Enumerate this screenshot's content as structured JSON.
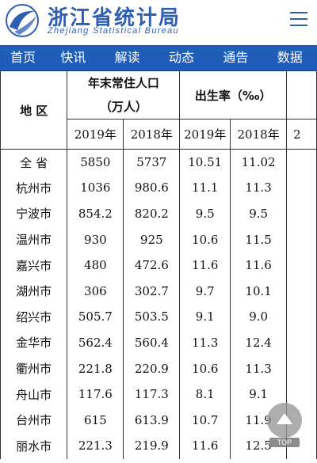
{
  "header": {
    "title": "浙江省统计局",
    "subtitle": "Zhejiang Statistical Bureau",
    "logo_icon": "zhejiang-stats-logo-icon",
    "menu_icon": "hamburger-menu-icon",
    "brand_color": "#2f5fb4"
  },
  "nav": {
    "background": "#1f5db8",
    "items": [
      {
        "label": "首页"
      },
      {
        "label": "快讯"
      },
      {
        "label": "解读"
      },
      {
        "label": "动态"
      },
      {
        "label": "通告"
      },
      {
        "label": "数据"
      }
    ]
  },
  "table": {
    "region_header": "地 区",
    "population_header_line1": "年末常住人口",
    "population_header_line2": "（万人）",
    "birth_rate_header": "出生率（‰）",
    "year_2019": "2019年",
    "year_2018": "2018年",
    "year_clipped": "2",
    "rows": [
      {
        "region": "全  省",
        "pop_2019": "5850",
        "pop_2018": "5737",
        "birth_2019": "10.51",
        "birth_2018": "11.02"
      },
      {
        "region": "杭州市",
        "pop_2019": "1036",
        "pop_2018": "980.6",
        "birth_2019": "11.1",
        "birth_2018": "11.3"
      },
      {
        "region": "宁波市",
        "pop_2019": "854.2",
        "pop_2018": "820.2",
        "birth_2019": "9.5",
        "birth_2018": "9.5"
      },
      {
        "region": "温州市",
        "pop_2019": "930",
        "pop_2018": "925",
        "birth_2019": "10.6",
        "birth_2018": "11.5"
      },
      {
        "region": "嘉兴市",
        "pop_2019": "480",
        "pop_2018": "472.6",
        "birth_2019": "11.6",
        "birth_2018": "11.6"
      },
      {
        "region": "湖州市",
        "pop_2019": "306",
        "pop_2018": "302.7",
        "birth_2019": "9.7",
        "birth_2018": "10.1"
      },
      {
        "region": "绍兴市",
        "pop_2019": "505.7",
        "pop_2018": "503.5",
        "birth_2019": "9.1",
        "birth_2018": "9.0"
      },
      {
        "region": "金华市",
        "pop_2019": "562.4",
        "pop_2018": "560.4",
        "birth_2019": "11.3",
        "birth_2018": "12.4"
      },
      {
        "region": "衢州市",
        "pop_2019": "221.8",
        "pop_2018": "220.9",
        "birth_2019": "10.6",
        "birth_2018": "11.3"
      },
      {
        "region": "舟山市",
        "pop_2019": "117.6",
        "pop_2018": "117.3",
        "birth_2019": "8.1",
        "birth_2018": "9.1"
      },
      {
        "region": "台州市",
        "pop_2019": "615",
        "pop_2018": "613.9",
        "birth_2019": "10.7",
        "birth_2018": "11.9"
      },
      {
        "region": "丽水市",
        "pop_2019": "221.3",
        "pop_2018": "219.9",
        "birth_2019": "11.6",
        "birth_2018": "12.5"
      }
    ]
  },
  "top_button": {
    "label": "TOP",
    "icon": "arrow-up-icon"
  }
}
